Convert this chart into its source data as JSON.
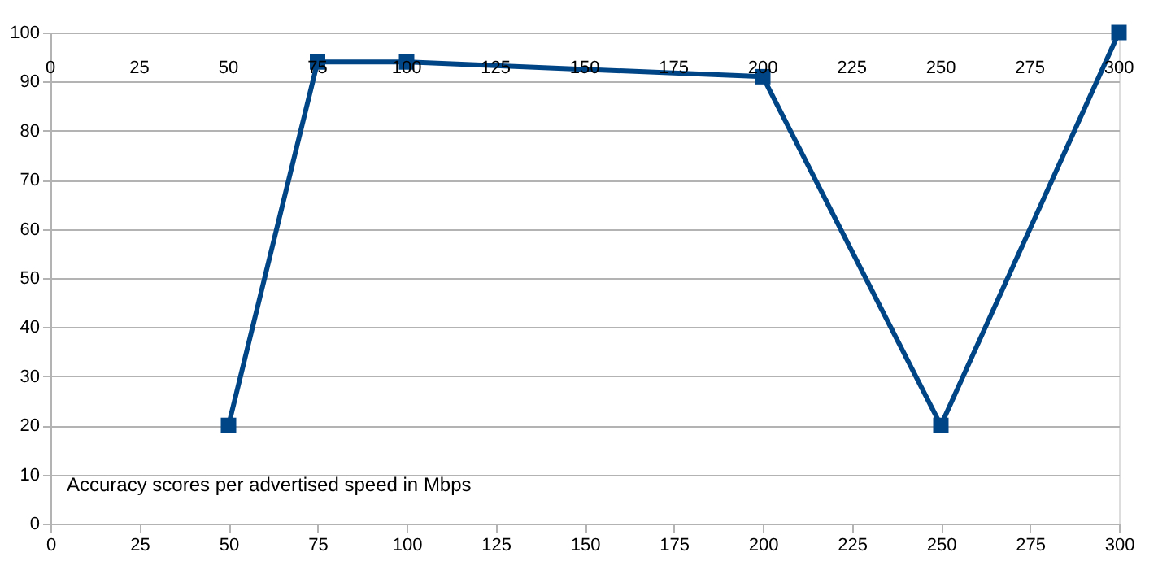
{
  "chart_data": {
    "type": "line",
    "x": [
      50,
      75,
      100,
      200,
      250,
      300
    ],
    "series": [
      {
        "color": "#004586",
        "values": [
          20,
          94,
          94,
          91,
          20,
          100
        ]
      }
    ],
    "xlim": [
      0,
      300
    ],
    "xticks": [
      0,
      25,
      50,
      75,
      100,
      125,
      150,
      175,
      200,
      225,
      250,
      275,
      300
    ],
    "x2lim": [
      0,
      300
    ],
    "x2ticks": [
      0,
      25,
      50,
      75,
      100,
      125,
      150,
      175,
      200,
      225,
      250,
      275,
      300
    ],
    "ylim": [
      0,
      100
    ],
    "yticks": [
      0,
      10,
      20,
      30,
      40,
      50,
      60,
      70,
      80,
      90,
      100
    ],
    "grid": "y",
    "marker": "square",
    "line_style": "solid",
    "annotations": [
      "Accuracy scores per advertised speed in Mbps"
    ]
  }
}
